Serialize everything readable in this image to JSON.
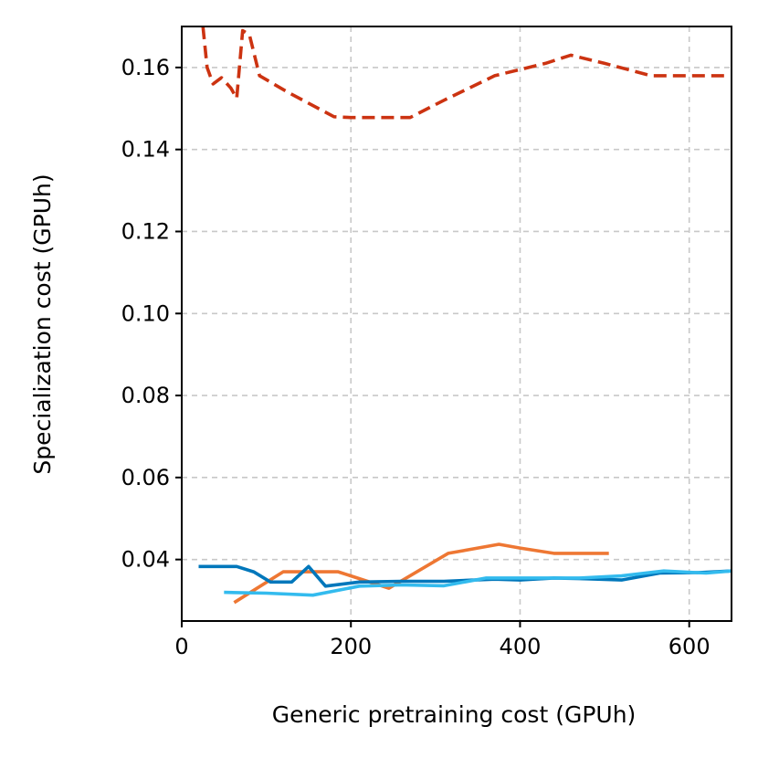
{
  "chart_data": {
    "type": "line",
    "title": "",
    "xlabel": "Generic pretraining cost (GPUh)",
    "ylabel": "Specialization cost (GPUh)",
    "xlim": [
      0,
      650
    ],
    "ylim": [
      0.025,
      0.17
    ],
    "xticks": [
      0,
      200,
      400,
      600
    ],
    "xtick_labels": [
      "0",
      "200",
      "400",
      "600"
    ],
    "yticks": [
      0.04,
      0.06,
      0.08,
      0.1,
      0.12,
      0.14,
      0.16
    ],
    "ytick_labels": [
      "0.04",
      "0.06",
      "0.08",
      "0.10",
      "0.12",
      "0.14",
      "0.16"
    ],
    "grid": true,
    "series": [
      {
        "name": "series-red-dashed",
        "color": "#cc3311",
        "dashed": true,
        "x": [
          25,
          30,
          37,
          47,
          58,
          65,
          72,
          80,
          92,
          125,
          180,
          200,
          270,
          310,
          370,
          430,
          460,
          500,
          555,
          600,
          645
        ],
        "y": [
          0.17,
          0.16,
          0.156,
          0.1575,
          0.155,
          0.1525,
          0.169,
          0.168,
          0.158,
          0.154,
          0.148,
          0.1478,
          0.1478,
          0.152,
          0.158,
          0.161,
          0.163,
          0.161,
          0.158,
          0.158,
          0.158
        ]
      },
      {
        "name": "series-orange",
        "color": "#ee7733",
        "dashed": false,
        "x": [
          62,
          120,
          150,
          185,
          245,
          315,
          375,
          400,
          440,
          505
        ],
        "y": [
          0.0295,
          0.037,
          0.037,
          0.037,
          0.033,
          0.0415,
          0.0437,
          0.0428,
          0.0415,
          0.0415
        ]
      },
      {
        "name": "series-dark-blue",
        "color": "#0077bb",
        "dashed": false,
        "x": [
          20,
          65,
          85,
          105,
          130,
          150,
          170,
          210,
          260,
          310,
          370,
          400,
          440,
          480,
          520,
          565,
          610,
          650
        ],
        "y": [
          0.0383,
          0.0383,
          0.037,
          0.0345,
          0.0345,
          0.0383,
          0.0335,
          0.0345,
          0.0347,
          0.0347,
          0.0352,
          0.035,
          0.0355,
          0.0353,
          0.035,
          0.0367,
          0.0368,
          0.0372
        ]
      },
      {
        "name": "series-light-blue",
        "color": "#33bbee",
        "dashed": false,
        "x": [
          50,
          100,
          155,
          210,
          260,
          310,
          360,
          420,
          470,
          520,
          570,
          620,
          650
        ],
        "y": [
          0.032,
          0.0318,
          0.0313,
          0.0335,
          0.0338,
          0.0336,
          0.0355,
          0.0355,
          0.0355,
          0.036,
          0.0372,
          0.0367,
          0.0372
        ]
      }
    ]
  }
}
